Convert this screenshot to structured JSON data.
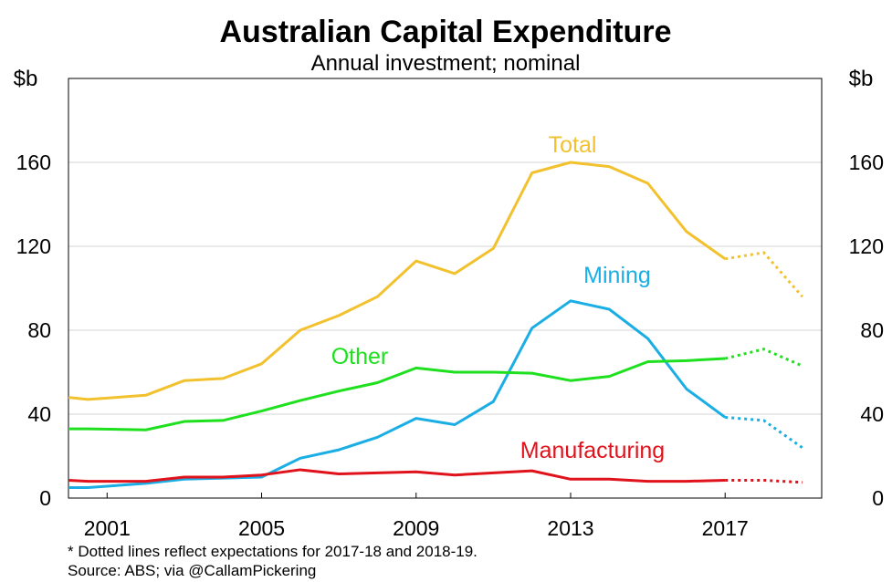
{
  "chart_data": {
    "type": "line",
    "title": "Australian Capital Expenditure",
    "subtitle": "Annual investment; nominal",
    "ylabel_left": "$b",
    "ylabel_right": "$b",
    "ylim": [
      0,
      200
    ],
    "yticks": [
      0,
      40,
      80,
      120,
      160
    ],
    "xlim": [
      2000,
      2019.5
    ],
    "xticks": [
      2001,
      2005,
      2009,
      2013,
      2017
    ],
    "grid": true,
    "legend": "none",
    "x": [
      2000,
      2000.5,
      2002,
      2003,
      2004,
      2005,
      2006,
      2007,
      2008,
      2009,
      2010,
      2011,
      2012,
      2013,
      2014,
      2015,
      2016,
      2017,
      2018,
      2019
    ],
    "series": [
      {
        "name": "Total",
        "color": "#f2c12e",
        "values": [
          48,
          47,
          49,
          56,
          57,
          64,
          80,
          87,
          96,
          113,
          107,
          119,
          155,
          160,
          158,
          150,
          127,
          114,
          117,
          96
        ],
        "dotted_from_index": 17
      },
      {
        "name": "Mining",
        "color": "#1aaee4",
        "values": [
          5,
          5,
          7,
          9,
          9.5,
          10,
          19,
          23,
          29,
          38,
          35,
          46,
          81,
          94,
          90,
          76,
          52,
          38.5,
          37,
          24
        ],
        "dotted_from_index": 17
      },
      {
        "name": "Other",
        "color": "#1ee01e",
        "values": [
          33,
          33,
          32.5,
          36.5,
          37,
          41.5,
          46.5,
          51,
          55,
          62,
          60,
          60,
          59.5,
          56,
          58,
          65,
          65.5,
          66.5,
          71,
          63
        ],
        "dotted_from_index": 17
      },
      {
        "name": "Manufacturing",
        "color": "#e0121b",
        "values": [
          8.5,
          8,
          8,
          10,
          10,
          11,
          13.5,
          11.5,
          12,
          12.5,
          11,
          12,
          13,
          9,
          9,
          8,
          8,
          8.5,
          8.5,
          7.5
        ],
        "dotted_from_index": 17
      }
    ],
    "footnote": "* Dotted lines reflect expectations for 2017-18 and 2018-19.",
    "source": "Source: ABS; via @CallamPickering"
  }
}
